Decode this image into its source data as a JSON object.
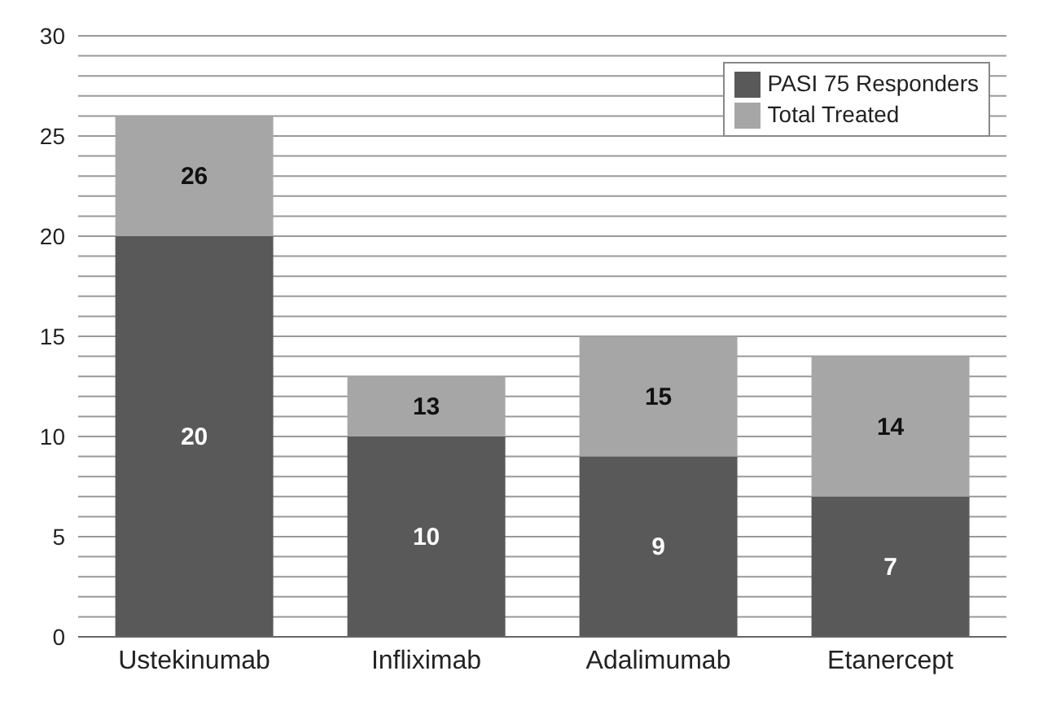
{
  "chart_data": {
    "type": "bar",
    "stacked": true,
    "categories": [
      "Ustekinumab",
      "Infliximab",
      "Adalimumab",
      "Etanercept"
    ],
    "series": [
      {
        "name": "PASI 75 Responders",
        "color": "#595959",
        "values": [
          20,
          10,
          9,
          7
        ],
        "value_labels": [
          "20",
          "10",
          "9",
          "7"
        ]
      },
      {
        "name": "Total Treated",
        "color": "#a6a6a6",
        "values": [
          6,
          3,
          6,
          7
        ]
      }
    ],
    "totals": [
      "26",
      "13",
      "15",
      "14"
    ],
    "ylim": [
      0,
      30
    ],
    "yticks": [
      0,
      {
        "value": 1,
        "label": null
      },
      {
        "value": 2,
        "label": null
      },
      {
        "value": 3,
        "label": null
      },
      {
        "value": 4,
        "label": null
      },
      5,
      {
        "value": 6,
        "label": null
      },
      {
        "value": 7,
        "label": null
      },
      {
        "value": 8,
        "label": null
      },
      {
        "value": 9,
        "label": null
      },
      10,
      {
        "value": 11,
        "label": null
      },
      {
        "value": 12,
        "label": null
      },
      {
        "value": 13,
        "label": null
      },
      {
        "value": 14,
        "label": null
      },
      15,
      {
        "value": 16,
        "label": null
      },
      {
        "value": 17,
        "label": null
      },
      {
        "value": 18,
        "label": null
      },
      {
        "value": 19,
        "label": null
      },
      20,
      {
        "value": 21,
        "label": null
      },
      {
        "value": 22,
        "label": null
      },
      {
        "value": 23,
        "label": null
      },
      {
        "value": 24,
        "label": null
      },
      25,
      {
        "value": 26,
        "label": null
      },
      {
        "value": 27,
        "label": null
      },
      {
        "value": 28,
        "label": null
      },
      {
        "value": 29,
        "label": null
      },
      30
    ],
    "grid": "y",
    "legend": "top right"
  }
}
